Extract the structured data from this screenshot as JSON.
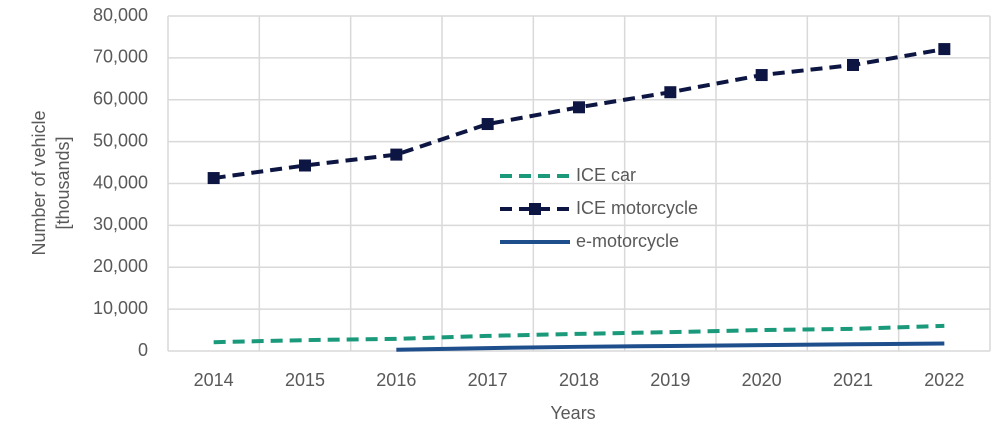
{
  "chart_data": {
    "type": "line",
    "x_label": "Years",
    "y_label": [
      "Number of vehicle",
      "[thousands]"
    ],
    "categories": [
      "2014",
      "2015",
      "2016",
      "2017",
      "2018",
      "2019",
      "2020",
      "2021",
      "2022"
    ],
    "series": [
      {
        "name": "ICE car",
        "color": "#1a9a7a",
        "line_style": "dashed",
        "marker": null,
        "values": [
          2100,
          2600,
          2900,
          3600,
          4100,
          4500,
          5000,
          5300,
          6000
        ]
      },
      {
        "name": "ICE motorcycle",
        "color": "#0d1642",
        "line_style": "dashed",
        "marker": "square",
        "values": [
          41300,
          44300,
          46900,
          54200,
          58200,
          61800,
          65900,
          68300,
          72100
        ]
      },
      {
        "name": "e-motorcycle",
        "color": "#1f4e8c",
        "line_style": "solid",
        "marker": null,
        "values": [
          null,
          null,
          300,
          700,
          1000,
          1200,
          1400,
          1600,
          1800
        ]
      }
    ],
    "ylim": [
      0,
      80000
    ],
    "yticks": [
      0,
      {
        "value": 10000,
        "label": "10,000"
      },
      {
        "value": 20000,
        "label": "20,000"
      },
      {
        "value": 30000,
        "label": "30,000"
      },
      {
        "value": 40000,
        "label": "40,000"
      },
      {
        "value": 50000,
        "label": "50,000"
      },
      {
        "value": 60000,
        "label": "60,000"
      },
      {
        "value": 70000,
        "label": "70,000"
      },
      {
        "value": 80000,
        "label": "80,000"
      }
    ],
    "grid": true,
    "legend": "center"
  }
}
